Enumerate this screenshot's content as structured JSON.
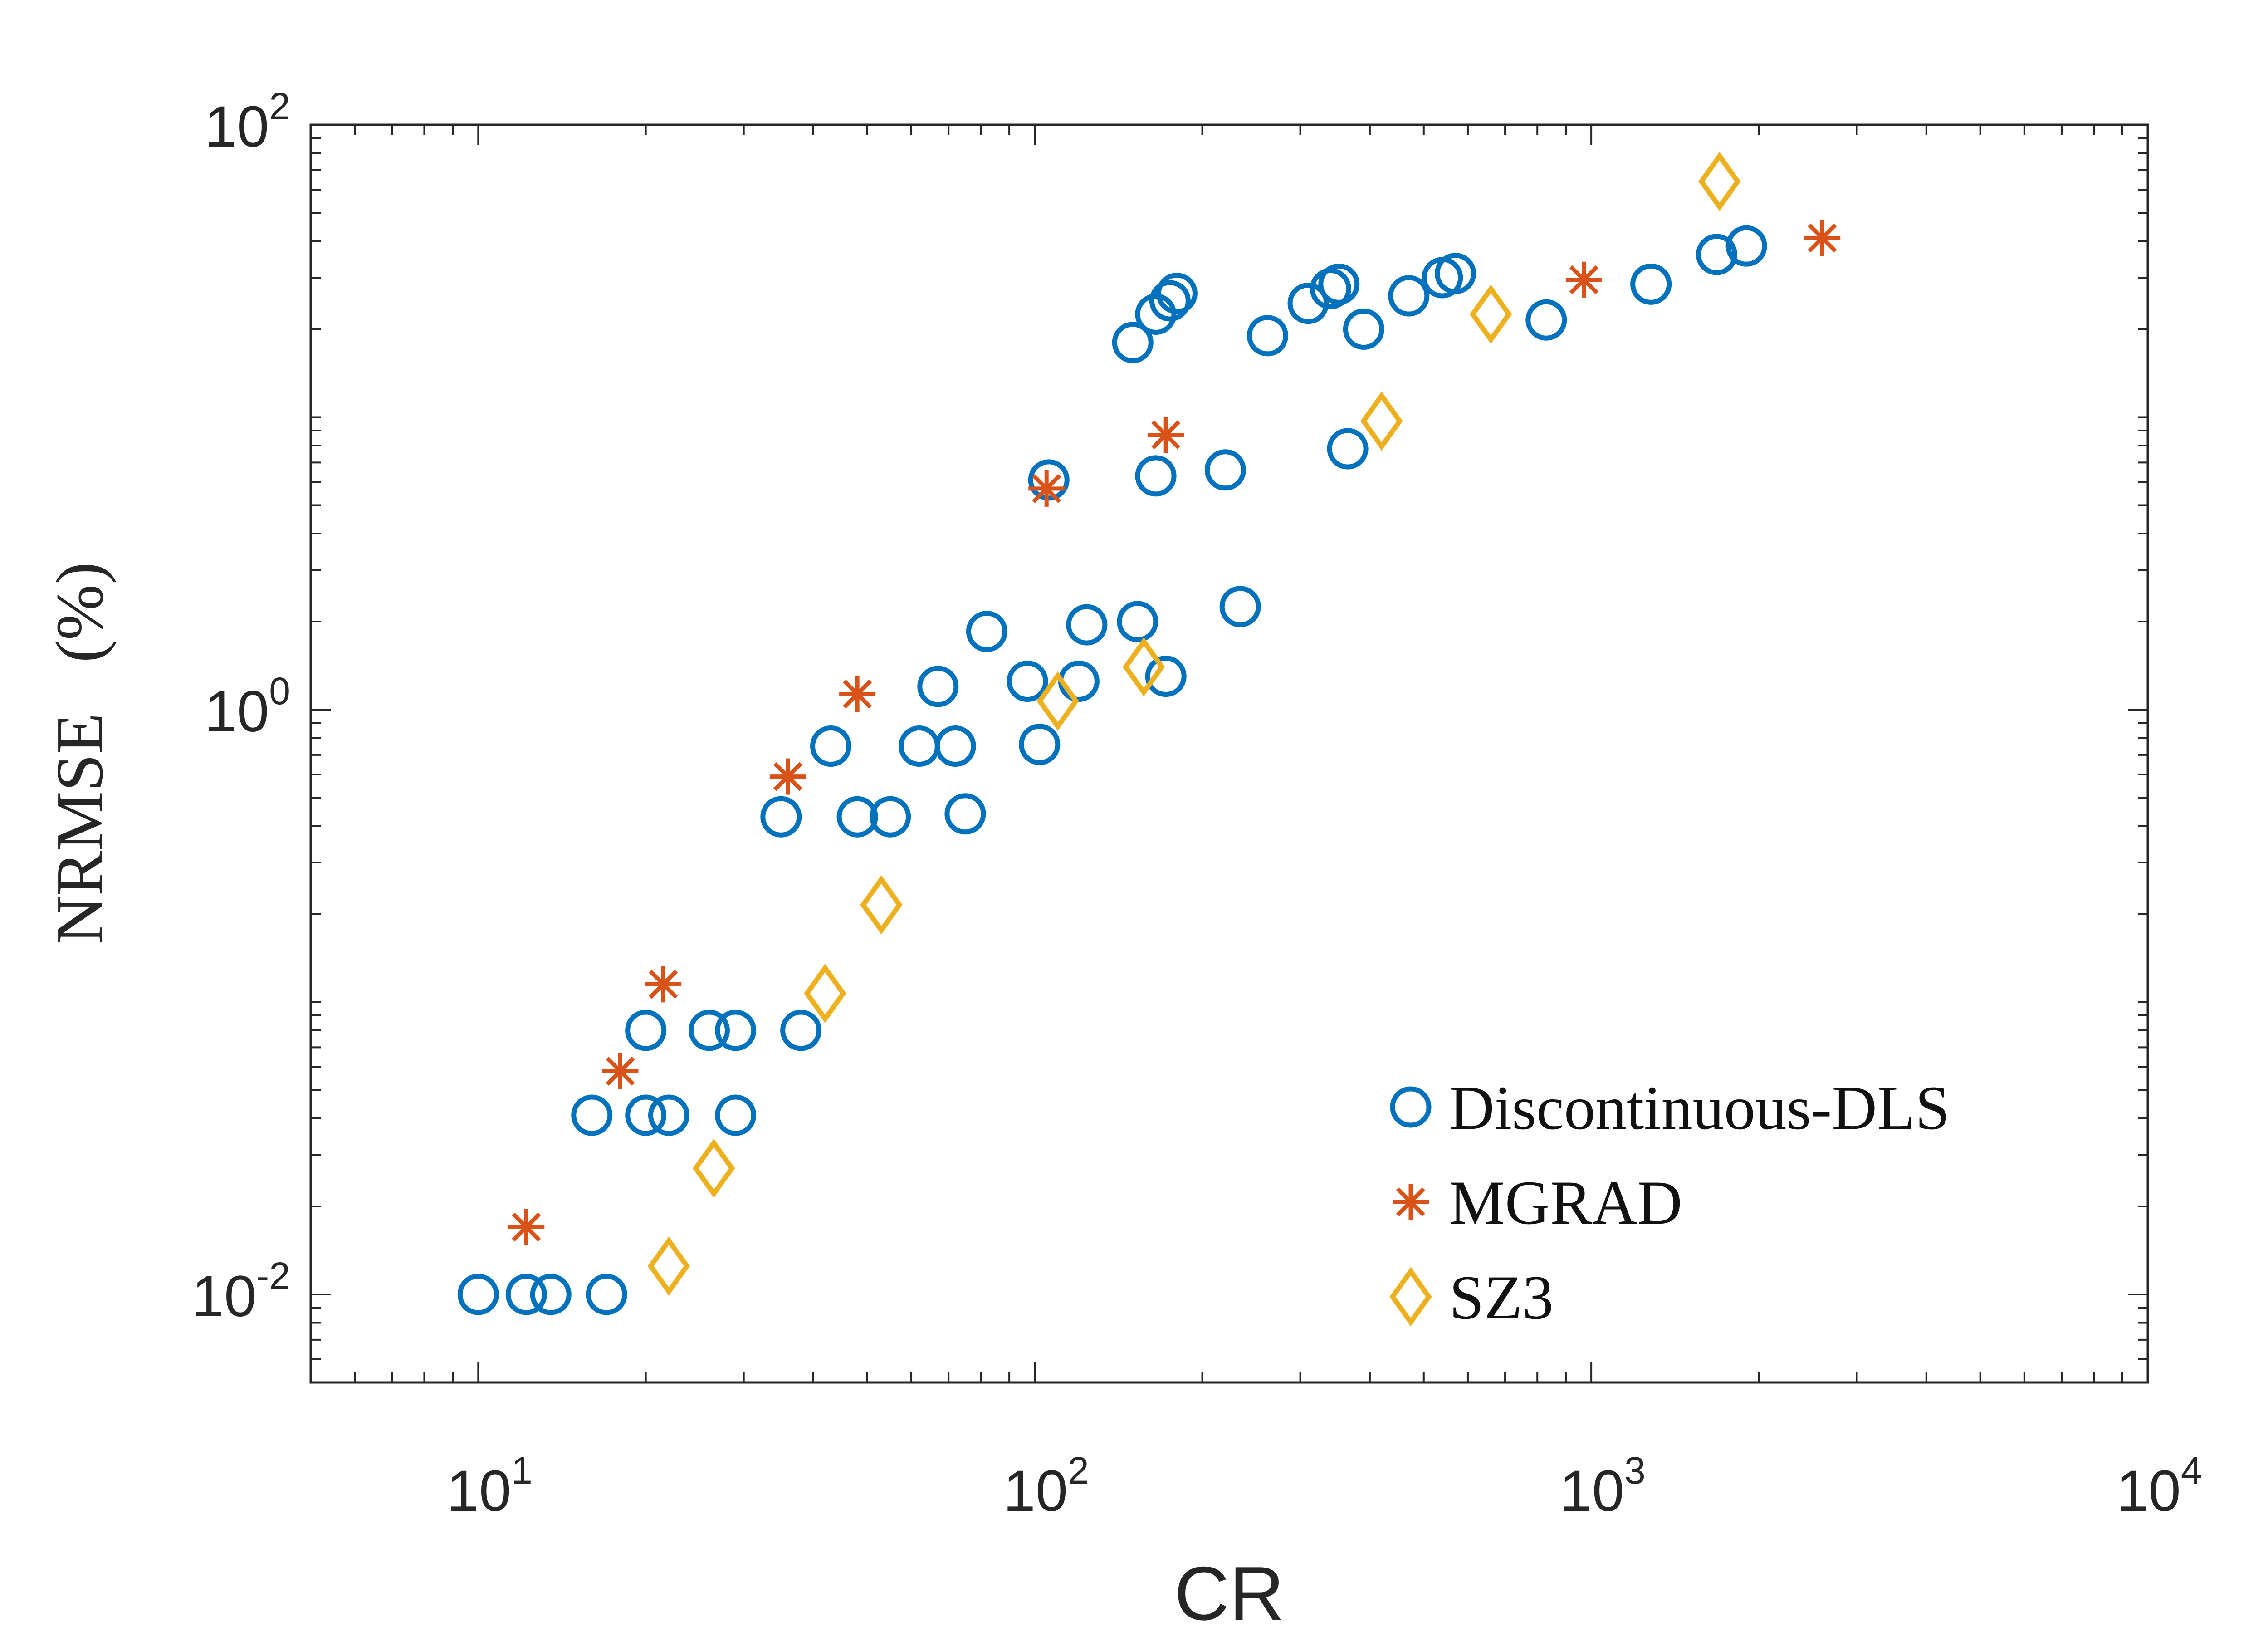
{
  "chart_data": {
    "type": "scatter",
    "xscale": "log",
    "yscale": "log",
    "xlabel": "CR",
    "ylabel": "NRMSE   (%)",
    "xlim": [
      5,
      10000
    ],
    "ylim": [
      0.005,
      100
    ],
    "x_ticks": [
      {
        "base": "10",
        "exp": "1",
        "value": 10
      },
      {
        "base": "10",
        "exp": "2",
        "value": 100
      },
      {
        "base": "10",
        "exp": "3",
        "value": 1000
      },
      {
        "base": "10",
        "exp": "4",
        "value": 10000
      }
    ],
    "y_ticks": [
      {
        "base": "10",
        "exp": "-2",
        "value": 0.01
      },
      {
        "base": "10",
        "exp": "0",
        "value": 1
      },
      {
        "base": "10",
        "exp": "2",
        "value": 100
      }
    ],
    "legend_position": "bottom-right",
    "series": [
      {
        "name": "Discontinuous-DLS",
        "marker": "circle",
        "color": "#0072BD",
        "points": [
          [
            10,
            0.01
          ],
          [
            12.2,
            0.01
          ],
          [
            13.5,
            0.01
          ],
          [
            17,
            0.01
          ],
          [
            16,
            0.041
          ],
          [
            20,
            0.041
          ],
          [
            22,
            0.041
          ],
          [
            29,
            0.041
          ],
          [
            20,
            0.08
          ],
          [
            26,
            0.08
          ],
          [
            29,
            0.08
          ],
          [
            38,
            0.08
          ],
          [
            35,
            0.43
          ],
          [
            48,
            0.43
          ],
          [
            55,
            0.43
          ],
          [
            75,
            0.44
          ],
          [
            43,
            0.75
          ],
          [
            62,
            0.75
          ],
          [
            72,
            0.75
          ],
          [
            102,
            0.76
          ],
          [
            67,
            1.2
          ],
          [
            97,
            1.25
          ],
          [
            120,
            1.25
          ],
          [
            172,
            1.3
          ],
          [
            82,
            1.85
          ],
          [
            124,
            1.95
          ],
          [
            153,
            2.0
          ],
          [
            234,
            2.25
          ],
          [
            106,
            6.1
          ],
          [
            165,
            6.3
          ],
          [
            220,
            6.6
          ],
          [
            365,
            7.8
          ],
          [
            150,
            18
          ],
          [
            165,
            22.5
          ],
          [
            175,
            25
          ],
          [
            180,
            26.5
          ],
          [
            262,
            19
          ],
          [
            310,
            24.5
          ],
          [
            340,
            27.5
          ],
          [
            352,
            28.5
          ],
          [
            390,
            20
          ],
          [
            470,
            26
          ],
          [
            540,
            30
          ],
          [
            570,
            31
          ],
          [
            830,
            21.5
          ],
          [
            1280,
            28.5
          ],
          [
            1680,
            36
          ],
          [
            1900,
            38.5
          ]
        ]
      },
      {
        "name": "MGRAD",
        "marker": "asterisk",
        "color": "#D95319",
        "points": [
          [
            12.2,
            0.017
          ],
          [
            18,
            0.058
          ],
          [
            21.5,
            0.115
          ],
          [
            36,
            0.59
          ],
          [
            48,
            1.13
          ],
          [
            105,
            5.7
          ],
          [
            172,
            8.7
          ],
          [
            970,
            29.5
          ],
          [
            2600,
            41
          ]
        ]
      },
      {
        "name": "SZ3",
        "marker": "diamond",
        "color": "#EDB120",
        "points": [
          [
            22,
            0.0125
          ],
          [
            26.5,
            0.027
          ],
          [
            42,
            0.107
          ],
          [
            53,
            0.215
          ],
          [
            110,
            1.07
          ],
          [
            157,
            1.4
          ],
          [
            420,
            9.7
          ],
          [
            660,
            22.5
          ],
          [
            1700,
            64
          ]
        ]
      }
    ]
  }
}
